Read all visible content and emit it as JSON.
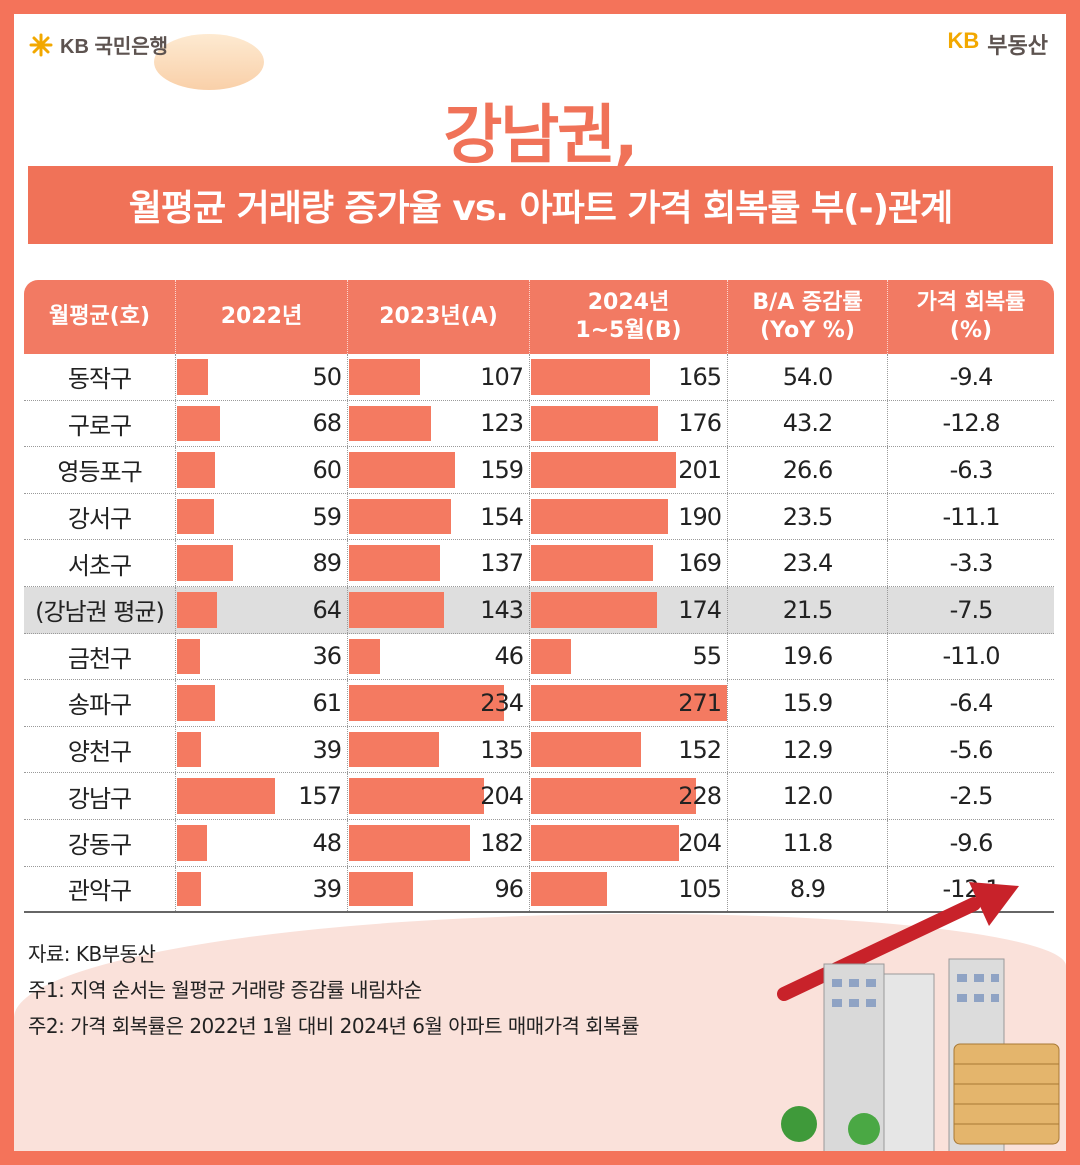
{
  "brand": {
    "bank": "KB 국민은행",
    "kb": "KB",
    "realty": "부동산"
  },
  "title": "강남권,",
  "subtitle": "월평균 거래량 증가율 vs. 아파트 가격 회복률 부(-)관계",
  "colors": {
    "accent": "#f07258",
    "bar": "#f47a61",
    "highlight_row": "#dedede"
  },
  "chart_data": {
    "type": "table",
    "columns": [
      "월평균(호)",
      "2022년",
      "2023년(A)",
      "2024년\n1~5월(B)",
      "B/A 증감률\n(YoY %)",
      "가격 회복률\n(%)"
    ],
    "bar_max": 271,
    "rows": [
      {
        "region": "동작구",
        "y2022": 50,
        "y2023": 107,
        "y2024": 165,
        "yoy": "54.0",
        "recovery": "-9.4"
      },
      {
        "region": "구로구",
        "y2022": 68,
        "y2023": 123,
        "y2024": 176,
        "yoy": "43.2",
        "recovery": "-12.8"
      },
      {
        "region": "영등포구",
        "y2022": 60,
        "y2023": 159,
        "y2024": 201,
        "yoy": "26.6",
        "recovery": "-6.3"
      },
      {
        "region": "강서구",
        "y2022": 59,
        "y2023": 154,
        "y2024": 190,
        "yoy": "23.5",
        "recovery": "-11.1"
      },
      {
        "region": "서초구",
        "y2022": 89,
        "y2023": 137,
        "y2024": 169,
        "yoy": "23.4",
        "recovery": "-3.3"
      },
      {
        "region": "(강남권 평균)",
        "y2022": 64,
        "y2023": 143,
        "y2024": 174,
        "yoy": "21.5",
        "recovery": "-7.5",
        "highlight": true
      },
      {
        "region": "금천구",
        "y2022": 36,
        "y2023": 46,
        "y2024": 55,
        "yoy": "19.6",
        "recovery": "-11.0"
      },
      {
        "region": "송파구",
        "y2022": 61,
        "y2023": 234,
        "y2024": 271,
        "yoy": "15.9",
        "recovery": "-6.4"
      },
      {
        "region": "양천구",
        "y2022": 39,
        "y2023": 135,
        "y2024": 152,
        "yoy": "12.9",
        "recovery": "-5.6"
      },
      {
        "region": "강남구",
        "y2022": 157,
        "y2023": 204,
        "y2024": 228,
        "yoy": "12.0",
        "recovery": "-2.5"
      },
      {
        "region": "강동구",
        "y2022": 48,
        "y2023": 182,
        "y2024": 204,
        "yoy": "11.8",
        "recovery": "-9.6"
      },
      {
        "region": "관악구",
        "y2022": 39,
        "y2023": 96,
        "y2024": 105,
        "yoy": "8.9",
        "recovery": "-12.1"
      }
    ]
  },
  "notes": [
    "자료: KB부동산",
    "주1: 지역 순서는 월평균 거래량 증감률 내림차순",
    "주2: 가격 회복률은 2022년 1월 대비 2024년 6월 아파트 매매가격 회복률"
  ]
}
